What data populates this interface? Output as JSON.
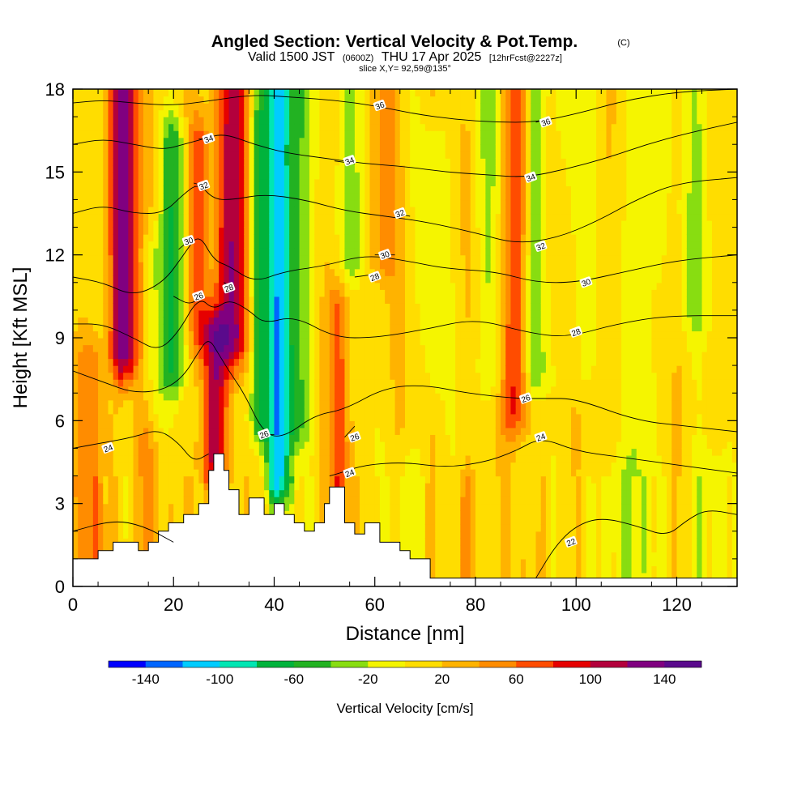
{
  "chart_data": {
    "type": "heatmap",
    "title": "Angled Section: Vertical Velocity & Pot.Temp.",
    "title_unit": "(C)",
    "subtitle_pre": "Valid 1500 JST",
    "subtitle_utc": "(0600Z)",
    "subtitle_date": "THU 17 Apr 2025",
    "subtitle_fcst": "[12hrFcst@2227z]",
    "slice_label": "slice X,Y= 92,59@135°",
    "xlabel": "Distance [nm]",
    "ylabel": "Height [Kft MSL]",
    "xlim": [
      0,
      132
    ],
    "ylim": [
      0,
      18
    ],
    "x_ticks": [
      "0",
      "20",
      "40",
      "60",
      "80",
      "100",
      "120"
    ],
    "y_ticks": [
      "0",
      "3",
      "6",
      "9",
      "12",
      "15",
      "18"
    ],
    "colorbar": {
      "label": "Vertical Velocity [cm/s]",
      "ticks": [
        "-140",
        "-100",
        "-60",
        "-20",
        "20",
        "60",
        "100",
        "140"
      ],
      "bins": [
        -160,
        -140,
        -120,
        -100,
        -80,
        -60,
        -40,
        -20,
        0,
        20,
        40,
        60,
        80,
        100,
        120,
        140,
        160
      ],
      "colors": [
        "#0000ff",
        "#0066ff",
        "#00ccff",
        "#00e6b3",
        "#00b33c",
        "#22b222",
        "#88dd11",
        "#f5f500",
        "#ffdd00",
        "#ffb300",
        "#ff8c00",
        "#ff4c00",
        "#e60000",
        "#b3003c",
        "#800080",
        "#5a0a8c"
      ]
    },
    "terrain_kft": [
      [
        0,
        1.0
      ],
      [
        5,
        1.0
      ],
      [
        5,
        1.3
      ],
      [
        8,
        1.3
      ],
      [
        8,
        1.6
      ],
      [
        13,
        1.6
      ],
      [
        13,
        1.3
      ],
      [
        15,
        1.3
      ],
      [
        15,
        1.6
      ],
      [
        17,
        1.6
      ],
      [
        17,
        2.0
      ],
      [
        19,
        2.0
      ],
      [
        19,
        2.3
      ],
      [
        22,
        2.3
      ],
      [
        22,
        2.6
      ],
      [
        25,
        2.6
      ],
      [
        25,
        3.0
      ],
      [
        27,
        3.0
      ],
      [
        27,
        4.2
      ],
      [
        28,
        4.2
      ],
      [
        28,
        4.8
      ],
      [
        30,
        4.8
      ],
      [
        30,
        4.2
      ],
      [
        31,
        4.2
      ],
      [
        31,
        3.5
      ],
      [
        33,
        3.5
      ],
      [
        33,
        2.6
      ],
      [
        35,
        2.6
      ],
      [
        35,
        3.2
      ],
      [
        38,
        3.2
      ],
      [
        38,
        2.6
      ],
      [
        40,
        2.6
      ],
      [
        40,
        3.0
      ],
      [
        42,
        3.0
      ],
      [
        42,
        2.6
      ],
      [
        44,
        2.6
      ],
      [
        44,
        2.3
      ],
      [
        46,
        2.3
      ],
      [
        46,
        2.0
      ],
      [
        48,
        2.0
      ],
      [
        48,
        2.3
      ],
      [
        50,
        2.3
      ],
      [
        50,
        3.0
      ],
      [
        51,
        3.0
      ],
      [
        51,
        3.6
      ],
      [
        54,
        3.6
      ],
      [
        54,
        2.3
      ],
      [
        56,
        2.3
      ],
      [
        56,
        1.9
      ],
      [
        58,
        1.9
      ],
      [
        58,
        2.3
      ],
      [
        61,
        2.3
      ],
      [
        61,
        1.6
      ],
      [
        65,
        1.6
      ],
      [
        65,
        1.3
      ],
      [
        67,
        1.3
      ],
      [
        67,
        1.0
      ],
      [
        71,
        1.0
      ],
      [
        71,
        0.3
      ],
      [
        132,
        0.3
      ]
    ],
    "w_features": [
      {
        "x": 10,
        "w": 3.5,
        "y0": 8.5,
        "y1": 18,
        "amp": 120
      },
      {
        "x": 32,
        "w": 3.0,
        "y0": 9.0,
        "y1": 18,
        "amp": 110
      },
      {
        "x": 28,
        "w": 2.5,
        "y0": 4.5,
        "y1": 9.0,
        "amp": 100
      },
      {
        "x": 25,
        "w": 2.0,
        "y0": 9.5,
        "y1": 16,
        "amp": 60
      },
      {
        "x": 41,
        "w": 2.5,
        "y0": 4.0,
        "y1": 18,
        "amp": -120
      },
      {
        "x": 37,
        "w": 2.0,
        "y0": 6.0,
        "y1": 18,
        "amp": -70
      },
      {
        "x": 45,
        "w": 2.5,
        "y0": 6.0,
        "y1": 18,
        "amp": -50
      },
      {
        "x": 53,
        "w": 2.0,
        "y0": 3.0,
        "y1": 10,
        "amp": 60
      },
      {
        "x": 56,
        "w": 2.5,
        "y0": 12,
        "y1": 18,
        "amp": -40
      },
      {
        "x": 20,
        "w": 2.5,
        "y0": 8.0,
        "y1": 16,
        "amp": -60
      },
      {
        "x": 16,
        "w": 3.0,
        "y0": 6.5,
        "y1": 12,
        "amp": -35
      },
      {
        "x": 7,
        "w": 2.0,
        "y0": 8.0,
        "y1": 18,
        "amp": -30
      },
      {
        "x": 88,
        "w": 2.5,
        "y0": 6.5,
        "y1": 18,
        "amp": 75
      },
      {
        "x": 92,
        "w": 2.0,
        "y0": 8.0,
        "y1": 18,
        "amp": -60
      },
      {
        "x": 83,
        "w": 3.0,
        "y0": 8.0,
        "y1": 18,
        "amp": -30
      },
      {
        "x": 100,
        "w": 3.0,
        "y0": 8.0,
        "y1": 18,
        "amp": -22
      },
      {
        "x": 113,
        "w": 3.0,
        "y0": 1.0,
        "y1": 18,
        "amp": -30
      },
      {
        "x": 124,
        "w": 4.0,
        "y0": 10,
        "y1": 18,
        "amp": -30
      },
      {
        "x": 72,
        "w": 2.5,
        "y0": 8.0,
        "y1": 16,
        "amp": -25
      },
      {
        "x": 107,
        "w": 4.0,
        "y0": 0.3,
        "y1": 3.5,
        "amp": -25
      },
      {
        "x": 126,
        "w": 4.0,
        "y0": 0.3,
        "y1": 4.0,
        "amp": -25
      },
      {
        "x": 67,
        "w": 3.0,
        "y0": 1.0,
        "y1": 4.0,
        "amp": -25
      },
      {
        "x": 78,
        "w": 2.0,
        "y0": 0.5,
        "y1": 3.0,
        "amp": 35
      },
      {
        "x": 4,
        "w": 3.0,
        "y0": 1.0,
        "y1": 8.0,
        "amp": 45
      },
      {
        "x": 14,
        "w": 2.0,
        "y0": 1.5,
        "y1": 6.0,
        "amp": 40
      },
      {
        "x": 62,
        "w": 2.5,
        "y0": 12,
        "y1": 18,
        "amp": 40
      }
    ],
    "theta_contours": [
      {
        "label": "22",
        "pts": [
          [
            0,
            2.0
          ],
          [
            8,
            2.4
          ],
          [
            14,
            2.2
          ],
          [
            20,
            1.6
          ]
        ],
        "label_at": [
          99,
          1.6
        ],
        "pts_b": [
          [
            92,
            0.3
          ],
          [
            96,
            1.5
          ],
          [
            100,
            2.2
          ],
          [
            105,
            2.5
          ],
          [
            112,
            2.2
          ],
          [
            118,
            1.8
          ],
          [
            122,
            2.4
          ],
          [
            126,
            2.8
          ],
          [
            132,
            2.6
          ]
        ]
      },
      {
        "label": "24",
        "pts": [
          [
            0,
            5.0
          ],
          [
            6,
            5.2
          ],
          [
            12,
            5.4
          ],
          [
            17,
            5.7
          ],
          [
            21,
            5.2
          ],
          [
            24,
            4.5
          ],
          [
            27,
            4.8
          ]
        ],
        "label_at": [
          7,
          5.0
        ]
      },
      {
        "label": "24",
        "pts": [
          [
            53,
            4.1
          ],
          [
            58,
            4.4
          ],
          [
            66,
            4.5
          ],
          [
            74,
            4.3
          ],
          [
            82,
            4.5
          ],
          [
            88,
            4.9
          ],
          [
            93,
            5.4
          ],
          [
            100,
            4.9
          ],
          [
            108,
            4.7
          ],
          [
            116,
            4.5
          ],
          [
            124,
            4.3
          ],
          [
            132,
            4.1
          ]
        ],
        "label_at": [
          93,
          5.4
        ]
      },
      {
        "label": "24",
        "pts": [
          [
            51,
            4.0
          ],
          [
            53,
            4.1
          ]
        ],
        "label_at": [
          55,
          4.1
        ]
      },
      {
        "label": "26",
        "pts": [
          [
            0,
            7.8
          ],
          [
            6,
            7.4
          ],
          [
            12,
            7.0
          ],
          [
            18,
            7.1
          ],
          [
            22,
            7.6
          ],
          [
            25,
            8.5
          ],
          [
            27,
            9.0
          ],
          [
            29,
            8.4
          ],
          [
            31,
            7.8
          ],
          [
            34,
            7.0
          ],
          [
            38,
            5.5
          ],
          [
            42,
            5.4
          ],
          [
            48,
            6.2
          ],
          [
            54,
            6.4
          ],
          [
            62,
            7.2
          ],
          [
            70,
            7.3
          ],
          [
            78,
            7.0
          ],
          [
            88,
            6.8
          ],
          [
            94,
            6.8
          ],
          [
            100,
            6.8
          ],
          [
            112,
            6.0
          ],
          [
            122,
            5.8
          ],
          [
            132,
            5.6
          ]
        ],
        "label_at": [
          90,
          6.8
        ]
      },
      {
        "label": "26",
        "pts": [
          [
            38,
            5.5
          ],
          [
            40,
            5.5
          ]
        ],
        "label_at": [
          38,
          5.5
        ]
      },
      {
        "label": "26",
        "pts": [
          [
            54,
            5.4
          ],
          [
            56,
            5.8
          ]
        ],
        "label_at": [
          56,
          5.4
        ]
      },
      {
        "label": "26",
        "pts": [
          [
            20,
            10.5
          ],
          [
            23,
            10.2
          ],
          [
            25,
            10.4
          ]
        ],
        "label_at": [
          25,
          10.5
        ]
      },
      {
        "label": "28",
        "pts": [
          [
            0,
            9.5
          ],
          [
            6,
            9.5
          ],
          [
            12,
            9.0
          ],
          [
            17,
            8.5
          ],
          [
            21,
            9.2
          ],
          [
            25,
            10.5
          ],
          [
            28,
            10.0
          ],
          [
            31,
            10.4
          ],
          [
            35,
            10.0
          ],
          [
            38,
            9.5
          ],
          [
            44,
            9.8
          ],
          [
            52,
            9.0
          ],
          [
            60,
            9.0
          ],
          [
            70,
            9.3
          ],
          [
            80,
            9.7
          ],
          [
            90,
            9.2
          ],
          [
            98,
            9.0
          ],
          [
            108,
            9.5
          ],
          [
            118,
            9.8
          ],
          [
            132,
            9.8
          ]
        ],
        "label_at": [
          100,
          9.2
        ]
      },
      {
        "label": "28",
        "pts": [
          [
            30,
            11.0
          ],
          [
            32,
            10.8
          ]
        ],
        "label_at": [
          31,
          10.8
        ]
      },
      {
        "label": "28",
        "pts": [
          [
            56,
            11.2
          ],
          [
            60,
            11.3
          ]
        ],
        "label_at": [
          60,
          11.2
        ]
      },
      {
        "label": "30",
        "pts": [
          [
            0,
            11.2
          ],
          [
            6,
            11.0
          ],
          [
            12,
            10.5
          ],
          [
            18,
            11.0
          ],
          [
            22,
            12.0
          ],
          [
            25,
            12.8
          ],
          [
            28,
            11.8
          ],
          [
            31,
            11.6
          ],
          [
            36,
            11.0
          ],
          [
            42,
            11.4
          ],
          [
            50,
            11.6
          ],
          [
            58,
            12.0
          ],
          [
            66,
            11.8
          ],
          [
            74,
            11.5
          ],
          [
            84,
            11.4
          ],
          [
            92,
            11.0
          ],
          [
            100,
            11.0
          ],
          [
            110,
            11.4
          ],
          [
            120,
            11.8
          ],
          [
            132,
            12.0
          ]
        ],
        "label_at": [
          102,
          11.0
        ]
      },
      {
        "label": "30",
        "pts": [
          [
            21,
            12.2
          ],
          [
            23,
            12.5
          ]
        ],
        "label_at": [
          23,
          12.5
        ]
      },
      {
        "label": "30",
        "pts": [
          [
            60,
            12.0
          ],
          [
            64,
            12.0
          ]
        ],
        "label_at": [
          62,
          12.0
        ]
      },
      {
        "label": "32",
        "pts": [
          [
            0,
            13.5
          ],
          [
            6,
            13.8
          ],
          [
            12,
            13.5
          ],
          [
            18,
            13.5
          ],
          [
            22,
            14.2
          ],
          [
            25,
            14.6
          ],
          [
            28,
            14.0
          ],
          [
            32,
            14.0
          ],
          [
            38,
            14.2
          ],
          [
            46,
            14.0
          ],
          [
            54,
            13.6
          ],
          [
            62,
            13.4
          ],
          [
            70,
            13.2
          ],
          [
            80,
            12.8
          ],
          [
            88,
            12.4
          ],
          [
            96,
            12.6
          ],
          [
            104,
            13.2
          ],
          [
            112,
            14.0
          ],
          [
            120,
            14.6
          ],
          [
            132,
            14.8
          ]
        ],
        "label_at": [
          93,
          12.3
        ]
      },
      {
        "label": "32",
        "pts": [
          [
            24,
            14.6
          ],
          [
            26,
            14.5
          ]
        ],
        "label_at": [
          26,
          14.5
        ]
      },
      {
        "label": "32",
        "pts": [
          [
            64,
            13.5
          ],
          [
            67,
            13.4
          ]
        ],
        "label_at": [
          65,
          13.5
        ]
      },
      {
        "label": "34",
        "pts": [
          [
            0,
            16.0
          ],
          [
            6,
            16.2
          ],
          [
            12,
            16.0
          ],
          [
            18,
            15.8
          ],
          [
            22,
            16.0
          ],
          [
            26,
            16.2
          ],
          [
            30,
            16.4
          ],
          [
            36,
            16.0
          ],
          [
            42,
            15.7
          ],
          [
            50,
            15.5
          ],
          [
            58,
            15.3
          ],
          [
            66,
            15.2
          ],
          [
            74,
            15.0
          ],
          [
            82,
            14.9
          ],
          [
            90,
            14.8
          ],
          [
            98,
            15.1
          ],
          [
            106,
            15.5
          ],
          [
            114,
            16.0
          ],
          [
            122,
            16.4
          ],
          [
            132,
            16.8
          ]
        ],
        "label_at": [
          91,
          14.8
        ]
      },
      {
        "label": "34",
        "pts": [
          [
            25,
            16.2
          ],
          [
            28,
            16.2
          ]
        ],
        "label_at": [
          27,
          16.2
        ]
      },
      {
        "label": "34",
        "pts": [
          [
            52,
            15.4
          ],
          [
            56,
            15.3
          ]
        ],
        "label_at": [
          55,
          15.4
        ]
      },
      {
        "label": "36",
        "pts": [
          [
            0,
            17.5
          ],
          [
            6,
            17.6
          ],
          [
            12,
            17.5
          ],
          [
            20,
            17.4
          ],
          [
            28,
            17.6
          ],
          [
            36,
            17.8
          ],
          [
            44,
            17.7
          ],
          [
            52,
            17.6
          ],
          [
            60,
            17.4
          ],
          [
            68,
            17.1
          ],
          [
            76,
            16.9
          ],
          [
            84,
            16.8
          ],
          [
            92,
            16.8
          ],
          [
            100,
            17.1
          ],
          [
            110,
            17.6
          ],
          [
            120,
            17.9
          ],
          [
            132,
            18.0
          ]
        ],
        "label_at": [
          61,
          17.4
        ]
      },
      {
        "label": "36",
        "pts": [
          [
            92,
            16.8
          ],
          [
            94,
            16.9
          ]
        ],
        "label_at": [
          94,
          16.8
        ]
      }
    ]
  }
}
